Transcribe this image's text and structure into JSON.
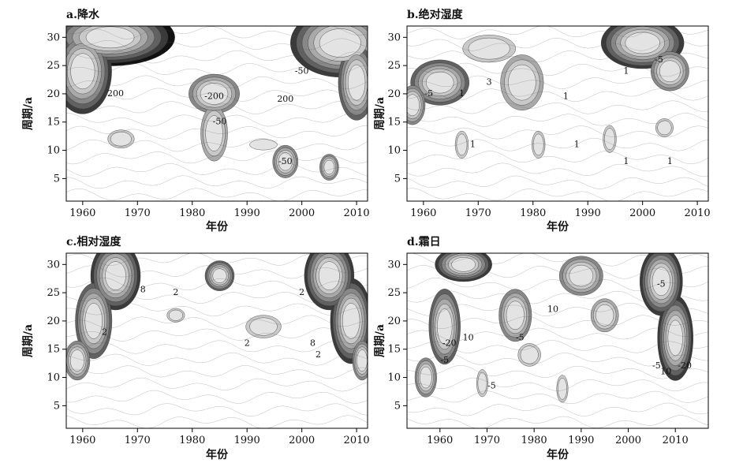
{
  "chart_data": [
    {
      "type": "heatmap",
      "panel": "a",
      "title": "a.降水",
      "xlabel": "年份",
      "ylabel": "周期/a",
      "xlim": [
        1957,
        2012
      ],
      "ylim": [
        1,
        32
      ],
      "xticks": [
        1960,
        1970,
        1980,
        1990,
        2000,
        2010
      ],
      "yticks": [
        5,
        10,
        15,
        20,
        25,
        30
      ],
      "contour_labels": [
        {
          "text": "200",
          "x": 1966,
          "y": 20
        },
        {
          "text": "-200",
          "x": 1984,
          "y": 19.5
        },
        {
          "text": "-50",
          "x": 1985,
          "y": 15
        },
        {
          "text": "200",
          "x": 1997,
          "y": 19
        },
        {
          "text": "-50",
          "x": 2000,
          "y": 24
        },
        {
          "text": "-50",
          "x": 1997,
          "y": 8
        }
      ],
      "features": [
        {
          "x": 1965,
          "y": 30,
          "sx": 7,
          "sy": 3,
          "v": 1.0
        },
        {
          "x": 1960,
          "y": 24,
          "sx": 3.5,
          "sy": 5,
          "v": 0.85
        },
        {
          "x": 2007,
          "y": 29,
          "sx": 6,
          "sy": 4,
          "v": 0.85
        },
        {
          "x": 2010,
          "y": 22,
          "sx": 2.5,
          "sy": 5,
          "v": 0.7
        },
        {
          "x": 1984,
          "y": 20,
          "sx": 4,
          "sy": 3,
          "v": 0.6
        },
        {
          "x": 1984,
          "y": 13,
          "sx": 2.5,
          "sy": 5,
          "v": 0.35
        },
        {
          "x": 1997,
          "y": 8,
          "sx": 2,
          "sy": 2.5,
          "v": 0.55
        },
        {
          "x": 2005,
          "y": 7,
          "sx": 1.5,
          "sy": 2,
          "v": 0.55
        },
        {
          "x": 1967,
          "y": 12,
          "sx": 3,
          "sy": 2,
          "v": 0.25
        },
        {
          "x": 1993,
          "y": 11,
          "sx": 4,
          "sy": 1.5,
          "v": 0.2
        }
      ]
    },
    {
      "type": "heatmap",
      "panel": "b",
      "title": "b.绝对湿度",
      "xlabel": "年份",
      "ylabel": "周期/a",
      "xlim": [
        1957,
        2012
      ],
      "ylim": [
        1,
        32
      ],
      "xticks": [
        1960,
        1970,
        1980,
        1990,
        2000,
        2010
      ],
      "yticks": [
        5,
        10,
        15,
        20,
        25,
        30
      ],
      "contour_labels": [
        {
          "text": "-5",
          "x": 1961,
          "y": 20
        },
        {
          "text": "1",
          "x": 1967,
          "y": 20
        },
        {
          "text": "3",
          "x": 1972,
          "y": 22
        },
        {
          "text": "1",
          "x": 1986,
          "y": 19.5
        },
        {
          "text": "1",
          "x": 1997,
          "y": 24
        },
        {
          "text": "-5",
          "x": 2003,
          "y": 26
        },
        {
          "text": "1",
          "x": 1969,
          "y": 11
        },
        {
          "text": "1",
          "x": 1988,
          "y": 11
        },
        {
          "text": "1",
          "x": 1997,
          "y": 8
        },
        {
          "text": "1",
          "x": 2005,
          "y": 8
        }
      ],
      "features": [
        {
          "x": 1963,
          "y": 22,
          "sx": 4,
          "sy": 3,
          "v": 0.8
        },
        {
          "x": 1958,
          "y": 18,
          "sx": 2,
          "sy": 3,
          "v": 0.55
        },
        {
          "x": 2000,
          "y": 29,
          "sx": 5,
          "sy": 3,
          "v": 0.9
        },
        {
          "x": 2005,
          "y": 24,
          "sx": 3,
          "sy": 3,
          "v": 0.6
        },
        {
          "x": 1978,
          "y": 22,
          "sx": 4,
          "sy": 5,
          "v": 0.35
        },
        {
          "x": 1972,
          "y": 28,
          "sx": 6,
          "sy": 3,
          "v": 0.25
        },
        {
          "x": 1967,
          "y": 11,
          "sx": 1.5,
          "sy": 3,
          "v": 0.3
        },
        {
          "x": 1981,
          "y": 11,
          "sx": 1.5,
          "sy": 3,
          "v": 0.3
        },
        {
          "x": 1994,
          "y": 12,
          "sx": 1.5,
          "sy": 3,
          "v": 0.3
        },
        {
          "x": 2004,
          "y": 14,
          "sx": 2,
          "sy": 2,
          "v": 0.3
        }
      ]
    },
    {
      "type": "heatmap",
      "panel": "c",
      "title": "c.相对湿度",
      "xlabel": "年份",
      "ylabel": "周期/a",
      "xlim": [
        1957,
        2012
      ],
      "ylim": [
        1,
        32
      ],
      "xticks": [
        1960,
        1970,
        1980,
        1990,
        2000,
        2010
      ],
      "yticks": [
        5,
        10,
        15,
        20,
        25,
        30
      ],
      "contour_labels": [
        {
          "text": "8",
          "x": 1971,
          "y": 25.5
        },
        {
          "text": "2",
          "x": 1977,
          "y": 25
        },
        {
          "text": "2",
          "x": 1964,
          "y": 18
        },
        {
          "text": "2",
          "x": 2000,
          "y": 25
        },
        {
          "text": "8",
          "x": 2002,
          "y": 16
        },
        {
          "text": "2",
          "x": 2003,
          "y": 14
        },
        {
          "text": "2",
          "x": 1990,
          "y": 16
        }
      ],
      "features": [
        {
          "x": 1966,
          "y": 28,
          "sx": 3,
          "sy": 4,
          "v": 0.95
        },
        {
          "x": 1962,
          "y": 20,
          "sx": 2.5,
          "sy": 5,
          "v": 0.8
        },
        {
          "x": 1959,
          "y": 13,
          "sx": 2,
          "sy": 3,
          "v": 0.55
        },
        {
          "x": 2005,
          "y": 28,
          "sx": 3,
          "sy": 4,
          "v": 0.95
        },
        {
          "x": 2009,
          "y": 20,
          "sx": 2.5,
          "sy": 5,
          "v": 0.85
        },
        {
          "x": 2011,
          "y": 13,
          "sx": 1.5,
          "sy": 3,
          "v": 0.6
        },
        {
          "x": 1985,
          "y": 28,
          "sx": 2,
          "sy": 2,
          "v": 0.8
        },
        {
          "x": 1993,
          "y": 19,
          "sx": 4,
          "sy": 2.5,
          "v": 0.3
        },
        {
          "x": 1977,
          "y": 21,
          "sx": 2,
          "sy": 1.5,
          "v": 0.3
        }
      ]
    },
    {
      "type": "heatmap",
      "panel": "d",
      "title": "d.霜日",
      "xlabel": "年份",
      "ylabel": "周期/a",
      "xlim": [
        1953,
        2017
      ],
      "ylim": [
        1,
        32
      ],
      "xticks": [
        1960,
        1970,
        1980,
        1990,
        2000,
        2010
      ],
      "yticks": [
        5,
        10,
        15,
        20,
        25,
        30
      ],
      "contour_labels": [
        {
          "text": "-20",
          "x": 1962,
          "y": 16
        },
        {
          "text": "10",
          "x": 1966,
          "y": 17
        },
        {
          "text": "-5",
          "x": 1961,
          "y": 13
        },
        {
          "text": "-5",
          "x": 1977,
          "y": 17
        },
        {
          "text": "10",
          "x": 1984,
          "y": 22
        },
        {
          "text": "-5",
          "x": 2007,
          "y": 26.5
        },
        {
          "text": "-5",
          "x": 2006,
          "y": 12
        },
        {
          "text": "10",
          "x": 2008,
          "y": 11
        },
        {
          "text": "-20",
          "x": 2012,
          "y": 12
        },
        {
          "text": "-5",
          "x": 1971,
          "y": 8.5
        }
      ],
      "features": [
        {
          "x": 1965,
          "y": 30,
          "sx": 4,
          "sy": 2,
          "v": 0.9
        },
        {
          "x": 1961,
          "y": 19,
          "sx": 2.5,
          "sy": 5,
          "v": 0.75
        },
        {
          "x": 1957,
          "y": 10,
          "sx": 2,
          "sy": 3,
          "v": 0.5
        },
        {
          "x": 2007,
          "y": 27,
          "sx": 3,
          "sy": 4,
          "v": 0.95
        },
        {
          "x": 2010,
          "y": 17,
          "sx": 2.5,
          "sy": 5,
          "v": 0.9
        },
        {
          "x": 1990,
          "y": 28,
          "sx": 4,
          "sy": 3,
          "v": 0.6
        },
        {
          "x": 1995,
          "y": 21,
          "sx": 3,
          "sy": 3,
          "v": 0.4
        },
        {
          "x": 1976,
          "y": 21,
          "sx": 3,
          "sy": 4,
          "v": 0.5
        },
        {
          "x": 1979,
          "y": 14,
          "sx": 3,
          "sy": 2.5,
          "v": 0.3
        },
        {
          "x": 1969,
          "y": 9,
          "sx": 1.5,
          "sy": 3,
          "v": 0.3
        },
        {
          "x": 1986,
          "y": 8,
          "sx": 1.5,
          "sy": 3,
          "v": 0.3
        }
      ]
    }
  ]
}
